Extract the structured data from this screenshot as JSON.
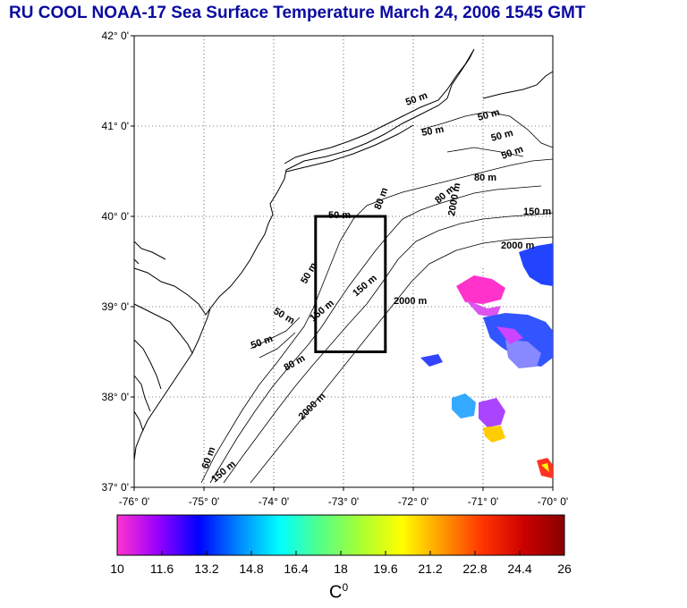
{
  "title": "RU COOL  NOAA-17 Sea Surface Temperature March 24, 2006 1545 GMT",
  "map": {
    "lat_ticks": [
      "42° 0'",
      "41° 0'",
      "40° 0'",
      "39° 0'",
      "38° 0'",
      "37° 0'"
    ],
    "lon_ticks": [
      "-76° 0'",
      "-75° 0'",
      "-74° 0'",
      "-73° 0'",
      "-72° 0'",
      "-71° 0'",
      "-70° 0'"
    ],
    "lat_range": [
      37,
      42
    ],
    "lon_range": [
      -76,
      -70
    ],
    "grid": true,
    "study_box": {
      "lon": [
        -73.4,
        -72.4
      ],
      "lat": [
        38.5,
        40.0
      ]
    },
    "contour_labels": [
      "50 m",
      "50 m",
      "50 m",
      "50 m",
      "50 m",
      "80 m",
      "80 m",
      "150 m",
      "50 m",
      "80 m",
      "150 m",
      "2000 m",
      "50 m",
      "150 m",
      "50 m",
      "2000 m",
      "50 m",
      "80 m",
      "2000 m",
      "60 m",
      "150 m",
      "2000 m"
    ]
  },
  "colorbar": {
    "min": 10,
    "max": 26,
    "ticks": [
      "10",
      "11.6",
      "13.2",
      "14.8",
      "16.4",
      "18",
      "19.6",
      "21.2",
      "22.8",
      "24.4",
      "26"
    ],
    "unit_base": "C",
    "unit_sup": "0",
    "colors": [
      "#ff33cc",
      "#9900ff",
      "#0000ff",
      "#0088ff",
      "#00ffff",
      "#55ff88",
      "#aaff33",
      "#ffff00",
      "#ff9900",
      "#ff3300",
      "#cc0000",
      "#880000"
    ]
  }
}
